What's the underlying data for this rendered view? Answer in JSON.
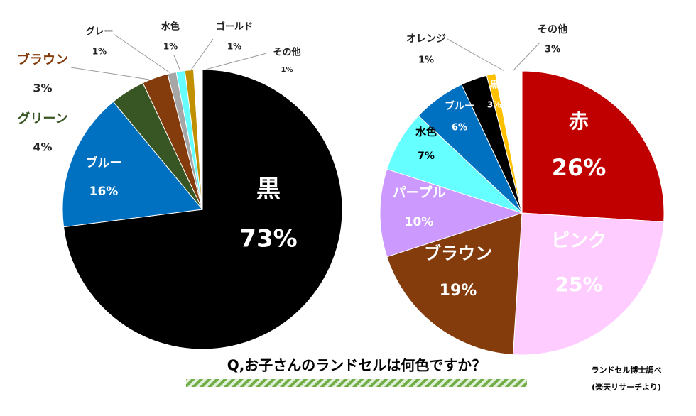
{
  "title": "Q,お子さんのランドセルは何色ですか？",
  "source": [
    "ランドセル博士調べ",
    "(楽天リサーチより)"
  ],
  "chart_data": [
    {
      "type": "pie",
      "categories": [
        "黒",
        "ブルー",
        "グリーン",
        "ブラウン",
        "グレー",
        "水色",
        "ゴールド",
        "その他"
      ],
      "values": [
        73,
        16,
        4,
        3,
        1,
        1,
        1,
        1
      ],
      "value_labels": [
        "73%",
        "16%",
        "4%",
        "3%",
        "1%",
        "1%",
        "1%",
        "1%"
      ],
      "colors": [
        "#000000",
        "#0070c0",
        "#375623",
        "#843c0c",
        "#a6a6a6",
        "#66ffff",
        "#c09000",
        "#ffffff"
      ]
    },
    {
      "type": "pie",
      "categories": [
        "赤",
        "ピンク",
        "ブラウン",
        "パープル",
        "水色",
        "ブルー",
        "黒",
        "オレンジ",
        "その他"
      ],
      "values": [
        26,
        25,
        19,
        10,
        7,
        6,
        3,
        1,
        3
      ],
      "value_labels": [
        "26%",
        "25%",
        "19%",
        "10%",
        "7%",
        "6%",
        "3%",
        "1%",
        "3%"
      ],
      "colors": [
        "#c00000",
        "#ffccff",
        "#843c0c",
        "#cc99ff",
        "#66ffff",
        "#0070c0",
        "#000000",
        "#ffc000",
        "#ffffff"
      ]
    }
  ]
}
